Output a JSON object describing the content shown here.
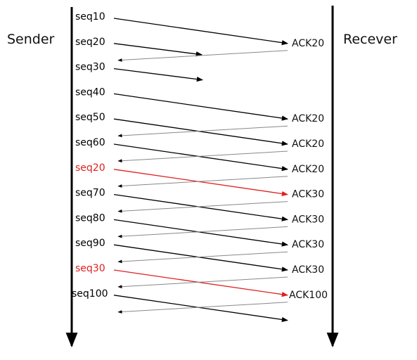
{
  "sender_label": "Sender",
  "receiver_label": "Recever",
  "colors": {
    "normal": "#000000",
    "retransmit": "#e02020",
    "ack_line": "#888888"
  },
  "sends": [
    {
      "label": "seq10",
      "retransmit": false,
      "delivered": true,
      "ack": "ACK20"
    },
    {
      "label": "seq20",
      "retransmit": false,
      "delivered": false,
      "ack": null
    },
    {
      "label": "seq30",
      "retransmit": false,
      "delivered": false,
      "ack": null
    },
    {
      "label": "seq40",
      "retransmit": false,
      "delivered": true,
      "ack": "ACK20"
    },
    {
      "label": "seq50",
      "retransmit": false,
      "delivered": true,
      "ack": "ACK20"
    },
    {
      "label": "seq60",
      "retransmit": false,
      "delivered": true,
      "ack": "ACK20"
    },
    {
      "label": "seq20",
      "retransmit": true,
      "delivered": true,
      "ack": "ACK30"
    },
    {
      "label": "seq70",
      "retransmit": false,
      "delivered": true,
      "ack": "ACK30"
    },
    {
      "label": "seq80",
      "retransmit": false,
      "delivered": true,
      "ack": "ACK30"
    },
    {
      "label": "seq90",
      "retransmit": false,
      "delivered": true,
      "ack": "ACK30"
    },
    {
      "label": "seq30",
      "retransmit": true,
      "delivered": true,
      "ack": "ACK100"
    },
    {
      "label": "seq100",
      "retransmit": false,
      "delivered": true,
      "ack": null
    }
  ]
}
